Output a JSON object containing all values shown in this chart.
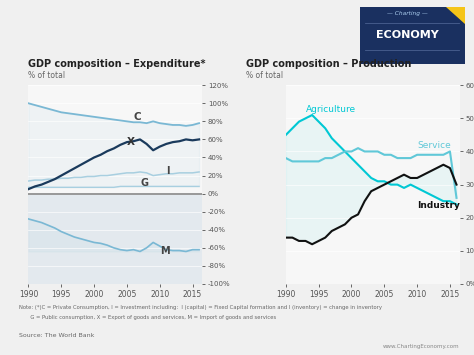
{
  "title_left": "GDP composition – Expenditure*",
  "title_right": "GDP composition – Production",
  "subtitle": "% of total",
  "note": "Note: (*)C = Private Consumption, I = Investment including:  I (capital) = Fixed Capital formation and I (inventory) = change in inventory\n       G = Public consumption, X = Export of goods and services, M = Import of goods and services",
  "source": "Source: The World Bank",
  "website": "www.ChartingEconomy.com",
  "years": [
    1990,
    1991,
    1992,
    1993,
    1994,
    1995,
    1996,
    1997,
    1998,
    1999,
    2000,
    2001,
    2002,
    2003,
    2004,
    2005,
    2006,
    2007,
    2008,
    2009,
    2010,
    2011,
    2012,
    2013,
    2014,
    2015,
    2016
  ],
  "C": [
    100,
    98,
    96,
    94,
    92,
    90,
    89,
    88,
    87,
    86,
    85,
    84,
    83,
    82,
    81,
    80,
    79,
    79,
    78,
    80,
    78,
    77,
    76,
    76,
    75,
    76,
    78
  ],
  "X": [
    5,
    8,
    10,
    13,
    16,
    20,
    24,
    28,
    32,
    36,
    40,
    43,
    47,
    50,
    54,
    57,
    58,
    60,
    55,
    48,
    52,
    55,
    57,
    58,
    60,
    59,
    60
  ],
  "I": [
    14,
    15,
    15,
    16,
    16,
    17,
    17,
    18,
    18,
    19,
    19,
    20,
    20,
    21,
    22,
    23,
    23,
    24,
    23,
    20,
    21,
    22,
    22,
    23,
    23,
    23,
    24
  ],
  "G": [
    7,
    7,
    7,
    7,
    7,
    7,
    7,
    7,
    7,
    7,
    7,
    7,
    7,
    7,
    8,
    8,
    8,
    8,
    8,
    8,
    8,
    8,
    8,
    8,
    8,
    8,
    8
  ],
  "M": [
    -28,
    -30,
    -32,
    -35,
    -38,
    -42,
    -45,
    -48,
    -50,
    -52,
    -54,
    -55,
    -57,
    -60,
    -62,
    -63,
    -62,
    -64,
    -60,
    -54,
    -58,
    -62,
    -63,
    -63,
    -64,
    -62,
    -62
  ],
  "prod_years": [
    1990,
    1991,
    1992,
    1993,
    1994,
    1995,
    1996,
    1997,
    1998,
    1999,
    2000,
    2001,
    2002,
    2003,
    2004,
    2005,
    2006,
    2007,
    2008,
    2009,
    2010,
    2011,
    2012,
    2013,
    2014,
    2015,
    2016
  ],
  "Agriculture": [
    45,
    47,
    49,
    50,
    51,
    49,
    47,
    44,
    42,
    40,
    38,
    36,
    34,
    32,
    31,
    31,
    30,
    30,
    29,
    30,
    29,
    28,
    27,
    26,
    25,
    25,
    24
  ],
  "Service": [
    38,
    37,
    37,
    37,
    37,
    37,
    38,
    38,
    39,
    40,
    40,
    41,
    40,
    40,
    40,
    39,
    39,
    38,
    38,
    38,
    39,
    39,
    39,
    39,
    39,
    40,
    26
  ],
  "Industry": [
    14,
    14,
    13,
    13,
    12,
    13,
    14,
    16,
    17,
    18,
    20,
    21,
    25,
    28,
    29,
    30,
    31,
    32,
    33,
    32,
    32,
    33,
    34,
    35,
    36,
    35,
    30
  ],
  "bg_color": "#f0f0f0",
  "plot_bg_upper": "#f7f7f7",
  "plot_bg_lower": "#e8eef3",
  "color_C": "#7ab8d4",
  "color_X": "#1a3a5c",
  "color_I": "#a8cfe0",
  "color_G": "#a8cfe0",
  "color_M": "#7ab8d4",
  "color_Agriculture": "#00c8d4",
  "color_Service": "#60c8d8",
  "color_Industry": "#111111",
  "logo_bg": "#1a3060",
  "logo_accent": "#f5c518"
}
